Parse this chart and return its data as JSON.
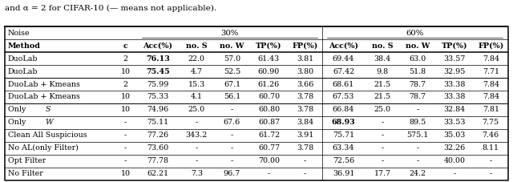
{
  "title_text": "and α = 2 for CIFAR-10 (— means not applicable).",
  "col_headers": [
    "Method",
    "c",
    "Acc(%)",
    "no. S",
    "no. W",
    "TP(%)",
    "FP(%)",
    "Acc(%)",
    "no. S",
    "no. W",
    "TP(%)",
    "FP(%)"
  ],
  "rows": [
    [
      "DuoLab",
      "2",
      "76.13",
      "22.0",
      "57.0",
      "61.43",
      "3.81",
      "69.44",
      "38.4",
      "63.0",
      "33.57",
      "7.84"
    ],
    [
      "DuoLab",
      "10",
      "75.45",
      "4.7",
      "52.5",
      "60.90",
      "3.80",
      "67.42",
      "9.8",
      "51.8",
      "32.95",
      "7.71"
    ],
    [
      "DuoLab + Kmeans",
      "2",
      "75.99",
      "15.3",
      "67.1",
      "61.26",
      "3.66",
      "68.61",
      "21.5",
      "78.7",
      "33.38",
      "7.84"
    ],
    [
      "DuoLab + Kmeans",
      "10",
      "75.33",
      "4.1",
      "56.1",
      "60.70",
      "3.78",
      "67.53",
      "21.5",
      "78.7",
      "33.38",
      "7.84"
    ],
    [
      "Only S",
      "10",
      "74.96",
      "25.0",
      "-",
      "60.80",
      "3.78",
      "66.84",
      "25.0",
      "-",
      "32.84",
      "7.81"
    ],
    [
      "Only W",
      "-",
      "75.11",
      "-",
      "67.6",
      "60.87",
      "3.84",
      "68.93",
      "-",
      "89.5",
      "33.53",
      "7.75"
    ],
    [
      "Clean All Suspicious",
      "-",
      "77.26",
      "343.2",
      "-",
      "61.72",
      "3.91",
      "75.71",
      "-",
      "575.1",
      "35.03",
      "7.46"
    ],
    [
      "No AL(only Filter)",
      "-",
      "73.60",
      "-",
      "-",
      "60.77",
      "3.78",
      "63.34",
      "-",
      "-",
      "32.26",
      "8.11"
    ],
    [
      "Opt Filter",
      "-",
      "77.78",
      "-",
      "-",
      "70.00",
      "-",
      "72.56",
      "-",
      "-",
      "40.00",
      "-"
    ],
    [
      "No Filter",
      "10",
      "62.21",
      "7.3",
      "96.7",
      "-",
      "-",
      "36.91",
      "17.7",
      "24.2",
      "-",
      "-"
    ]
  ],
  "bold_values": [
    "76.13",
    "75.45",
    "68.93"
  ],
  "col_widths_rel": [
    1.85,
    0.38,
    0.72,
    0.6,
    0.6,
    0.65,
    0.58,
    0.72,
    0.6,
    0.6,
    0.65,
    0.58
  ],
  "thick_line_after_data_rows": [
    1,
    3
  ],
  "font_size": 6.8,
  "title_font_size": 7.5
}
